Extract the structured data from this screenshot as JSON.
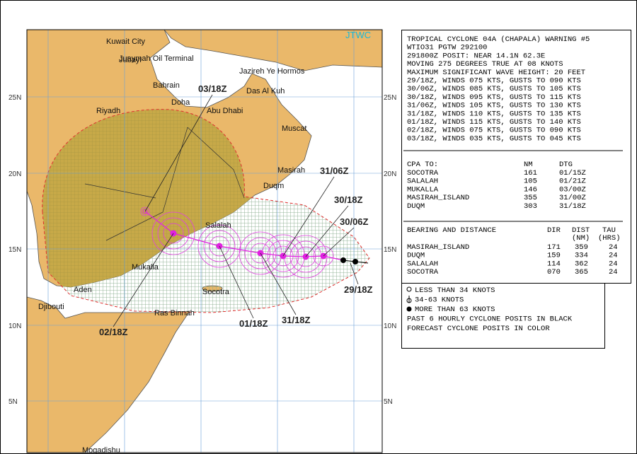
{
  "map": {
    "agency": "JTWC",
    "place_labels": [
      "Kuwait City",
      "Jubayl",
      "Juaymah Oil Terminal",
      "Jazireh Ye Hormos",
      "Bahrain",
      "Das Al Kuh",
      "Doha",
      "Abu Dhabi",
      "Riyadh",
      "Muscat",
      "Masirah",
      "Duqm",
      "Salalah",
      "Mukalla",
      "Aden",
      "Socotra",
      "Djibouti",
      "Ras Binnah",
      "Mogadishu"
    ],
    "lat_labels": [
      "25N",
      "20N",
      "15N",
      "10N",
      "5N"
    ],
    "track_labels": [
      "03/18Z",
      "31/06Z",
      "30/18Z",
      "30/06Z",
      "29/18Z",
      "31/18Z",
      "01/18Z",
      "02/18Z"
    ]
  },
  "warning": {
    "lines": [
      "TROPICAL CYCLONE 04A (CHAPALA) WARNING #5",
      "WTIO31 PGTW 292100",
      "291800Z POSIT: NEAR 14.1N 62.3E",
      "MOVING 275 DEGREES TRUE AT 08 KNOTS",
      "MAXIMUM SIGNIFICANT WAVE HEIGHT: 20 FEET",
      "29/18Z, WINDS 075 KTS, GUSTS TO 090 KTS",
      "30/06Z, WINDS 085 KTS, GUSTS TO 105 KTS",
      "30/18Z, WINDS 095 KTS, GUSTS TO 115 KTS",
      "31/06Z, WINDS 105 KTS, GUSTS TO 130 KTS",
      "31/18Z, WINDS 110 KTS, GUSTS TO 135 KTS",
      "01/18Z, WINDS 115 KTS, GUSTS TO 140 KTS",
      "02/18Z, WINDS 075 KTS, GUSTS TO 090 KTS",
      "03/18Z, WINDS 035 KTS, GUSTS TO 045 KTS"
    ],
    "cpa": {
      "header": [
        "CPA TO:",
        "NM",
        "DTG"
      ],
      "rows": [
        [
          "SOCOTRA",
          "161",
          "01/15Z"
        ],
        [
          "SALALAH",
          "105",
          "01/21Z"
        ],
        [
          "MUKALLA",
          "146",
          "03/00Z"
        ],
        [
          "MASIRAH_ISLAND",
          "355",
          "31/00Z"
        ],
        [
          "DUQM",
          "303",
          "31/18Z"
        ]
      ]
    },
    "bearing": {
      "header": [
        "BEARING AND DISTANCE",
        "DIR",
        "DIST",
        "TAU",
        "(NM)",
        "(HRS)"
      ],
      "rows": [
        [
          "MASIRAH_ISLAND",
          "171",
          "359",
          "24"
        ],
        [
          "DUQM",
          "159",
          "334",
          "24"
        ],
        [
          "SALALAH",
          "114",
          "362",
          "24"
        ],
        [
          "SOCOTRA",
          "070",
          "365",
          "24"
        ]
      ]
    }
  },
  "legend": [
    "LESS THAN 34 KNOTS",
    "34-63 KNOTS",
    "MORE THAN 63 KNOTS",
    "PAST 6 HOURLY CYCLONE POSITS IN BLACK",
    "FORECAST CYCLONE POSITS IN COLOR"
  ]
}
